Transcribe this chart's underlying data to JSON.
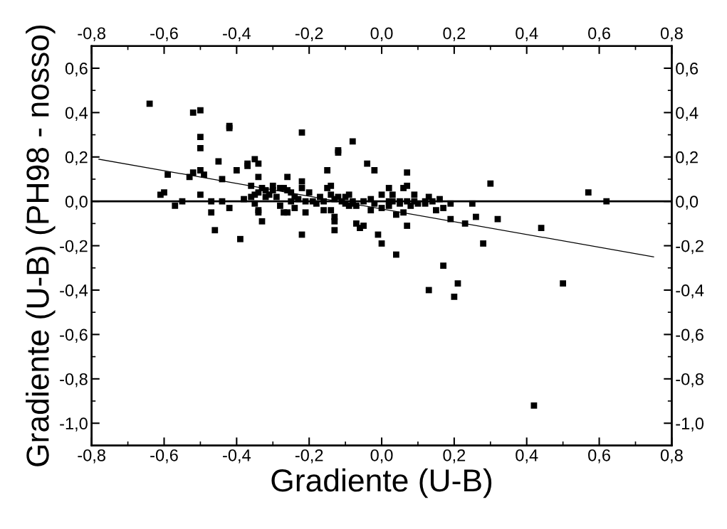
{
  "chart_data": {
    "type": "scatter",
    "xlabel": "Gradiente (U-B)",
    "ylabel": "Gradiente (U-B) (PH98 - nosso)",
    "xlim": [
      -0.8,
      0.8
    ],
    "ylim": [
      -1.1,
      0.7
    ],
    "x2lim": [
      -0.8,
      0.8
    ],
    "y2lim": [
      -1.1,
      0.7
    ],
    "xticks": [
      {
        "value": -0.8,
        "label": "-0,8"
      },
      {
        "value": -0.6,
        "label": "-0,6"
      },
      {
        "value": -0.4,
        "label": "-0,4"
      },
      {
        "value": -0.2,
        "label": "-0,2"
      },
      {
        "value": 0.0,
        "label": "0,0"
      },
      {
        "value": 0.2,
        "label": "0,2"
      },
      {
        "value": 0.4,
        "label": "0,4"
      },
      {
        "value": 0.6,
        "label": "0,6"
      },
      {
        "value": 0.8,
        "label": "0,8"
      }
    ],
    "x2ticks": [
      {
        "value": -0.8,
        "label": "-0,8"
      },
      {
        "value": -0.6,
        "label": "-0,6"
      },
      {
        "value": -0.4,
        "label": "-0,4"
      },
      {
        "value": -0.2,
        "label": "-0,2"
      },
      {
        "value": 0.0,
        "label": "0,0"
      },
      {
        "value": 0.2,
        "label": "0,2"
      },
      {
        "value": 0.4,
        "label": "0,4"
      },
      {
        "value": 0.6,
        "label": "0,6"
      },
      {
        "value": 0.8,
        "label": "0,8"
      }
    ],
    "yticks": [
      {
        "value": -1.0,
        "label": "-1,0"
      },
      {
        "value": -0.8,
        "label": "-0,8"
      },
      {
        "value": -0.6,
        "label": "-0,6"
      },
      {
        "value": -0.4,
        "label": "-0,4"
      },
      {
        "value": -0.2,
        "label": "-0,2"
      },
      {
        "value": 0.0,
        "label": "0,0"
      },
      {
        "value": 0.2,
        "label": "0,2"
      },
      {
        "value": 0.4,
        "label": "0,4"
      },
      {
        "value": 0.6,
        "label": "0,6"
      }
    ],
    "y2ticks": [
      {
        "value": -1.0,
        "label": "-1,0"
      },
      {
        "value": -0.8,
        "label": "-0,8"
      },
      {
        "value": -0.6,
        "label": "-0,6"
      },
      {
        "value": -0.4,
        "label": "-0,4"
      },
      {
        "value": -0.2,
        "label": "-0,2"
      },
      {
        "value": 0.0,
        "label": "0,0"
      },
      {
        "value": 0.2,
        "label": "0,2"
      },
      {
        "value": 0.4,
        "label": "0,4"
      },
      {
        "value": 0.6,
        "label": "0,6"
      }
    ],
    "grid": false,
    "legend": false,
    "ref_lines": [
      {
        "axis": "y",
        "value": 0.0,
        "color": "#000000",
        "line_style": "solid"
      }
    ],
    "series": [
      {
        "marker": "square",
        "color": "#000000",
        "x": [
          -0.64,
          -0.52,
          -0.5,
          -0.5,
          -0.5,
          -0.42,
          -0.42,
          -0.22,
          -0.12,
          -0.12,
          -0.08,
          -0.59,
          -0.61,
          -0.6,
          -0.57,
          -0.55,
          -0.53,
          -0.52,
          -0.5,
          -0.49,
          -0.5,
          -0.47,
          -0.47,
          -0.46,
          -0.45,
          -0.44,
          -0.44,
          -0.42,
          -0.4,
          -0.39,
          -0.38,
          -0.37,
          -0.37,
          -0.36,
          -0.36,
          -0.35,
          -0.35,
          -0.35,
          -0.34,
          -0.34,
          -0.34,
          -0.34,
          -0.34,
          -0.33,
          -0.33,
          -0.32,
          -0.32,
          -0.31,
          -0.3,
          -0.3,
          -0.29,
          -0.28,
          -0.28,
          -0.27,
          -0.27,
          -0.26,
          -0.26,
          -0.26,
          -0.25,
          -0.25,
          -0.24,
          -0.24,
          -0.23,
          -0.22,
          -0.22,
          -0.22,
          -0.21,
          -0.21,
          -0.2,
          -0.19,
          -0.18,
          -0.17,
          -0.16,
          -0.16,
          -0.15,
          -0.15,
          -0.14,
          -0.14,
          -0.14,
          -0.13,
          -0.13,
          -0.13,
          -0.13,
          -0.12,
          -0.11,
          -0.1,
          -0.1,
          -0.09,
          -0.09,
          -0.08,
          -0.08,
          -0.07,
          -0.07,
          -0.06,
          -0.05,
          -0.05,
          -0.04,
          -0.03,
          -0.03,
          -0.02,
          -0.02,
          -0.01,
          0.0,
          0.0,
          0.0,
          0.02,
          0.02,
          0.02,
          0.03,
          0.03,
          0.04,
          0.04,
          0.05,
          0.05,
          0.06,
          0.06,
          0.07,
          0.07,
          0.07,
          0.07,
          0.08,
          0.09,
          0.09,
          0.1,
          0.12,
          0.12,
          0.13,
          0.14,
          0.13,
          0.15,
          0.16,
          0.17,
          0.17,
          0.19,
          0.19,
          0.2,
          0.21,
          0.23,
          0.25,
          0.26,
          0.28,
          0.3,
          0.32,
          0.42,
          0.44,
          0.5,
          0.57,
          0.62
        ],
        "values": [
          0.44,
          0.4,
          0.41,
          0.29,
          0.24,
          0.34,
          0.33,
          0.31,
          0.22,
          0.23,
          0.27,
          0.12,
          0.03,
          0.04,
          -0.02,
          0.0,
          0.11,
          0.13,
          0.14,
          0.12,
          0.03,
          0.0,
          -0.05,
          -0.13,
          0.18,
          0.1,
          0.0,
          -0.03,
          0.14,
          -0.17,
          0.01,
          0.16,
          0.17,
          0.07,
          0.02,
          0.19,
          0.03,
          -0.01,
          0.17,
          0.11,
          0.04,
          -0.04,
          -0.05,
          0.06,
          -0.09,
          0.05,
          0.02,
          0.03,
          0.05,
          0.07,
          0.02,
          0.06,
          -0.02,
          0.06,
          -0.05,
          0.05,
          0.11,
          -0.05,
          0.0,
          0.04,
          0.02,
          -0.03,
          0.01,
          0.09,
          0.06,
          -0.15,
          0.0,
          -0.05,
          0.04,
          0.0,
          -0.01,
          0.02,
          0.0,
          -0.04,
          0.14,
          0.06,
          0.03,
          0.07,
          -0.04,
          0.01,
          -0.07,
          -0.09,
          -0.13,
          0.02,
          0.0,
          0.02,
          -0.01,
          -0.02,
          0.03,
          0.0,
          -0.01,
          -0.1,
          -0.02,
          -0.12,
          -0.11,
          0.0,
          0.17,
          0.01,
          -0.04,
          0.14,
          -0.01,
          -0.15,
          -0.19,
          0.03,
          -0.03,
          0.06,
          0.0,
          -0.02,
          0.03,
          0.0,
          -0.06,
          -0.24,
          0.0,
          -0.01,
          0.06,
          -0.05,
          0.13,
          0.07,
          0.0,
          -0.11,
          -0.02,
          0.0,
          0.03,
          -0.01,
          0.0,
          -0.01,
          0.02,
          0.0,
          -0.4,
          -0.04,
          0.01,
          -0.03,
          -0.29,
          -0.01,
          -0.08,
          -0.43,
          -0.37,
          -0.1,
          -0.01,
          -0.07,
          -0.19,
          0.08,
          -0.08,
          -0.92,
          -0.12,
          -0.37,
          0.04,
          0.0
        ]
      },
      {
        "type": "line",
        "marker": "none",
        "color": "#000000",
        "x": [
          -0.78,
          0.75
        ],
        "values": [
          0.19,
          -0.25
        ]
      }
    ]
  }
}
